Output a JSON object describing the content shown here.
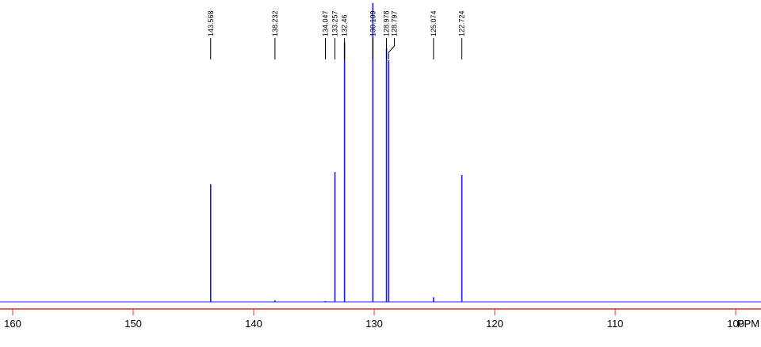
{
  "chart_data": {
    "type": "nmr",
    "x": [
      143.568,
      138.232,
      134.047,
      133.257,
      132.46,
      130.109,
      128.978,
      128.797,
      125.074,
      122.724
    ],
    "values": [
      39,
      0.5,
      0.3,
      43,
      86,
      99,
      84,
      80,
      1.5,
      42
    ],
    "color": "#1a1ae6",
    "axis_color": "#e03030",
    "xlim": [
      161.05,
      97.9
    ],
    "xticks": [
      160,
      150,
      140,
      130,
      120,
      110,
      100
    ],
    "ylim": [
      0,
      100
    ],
    "xlabel": "PPM"
  }
}
